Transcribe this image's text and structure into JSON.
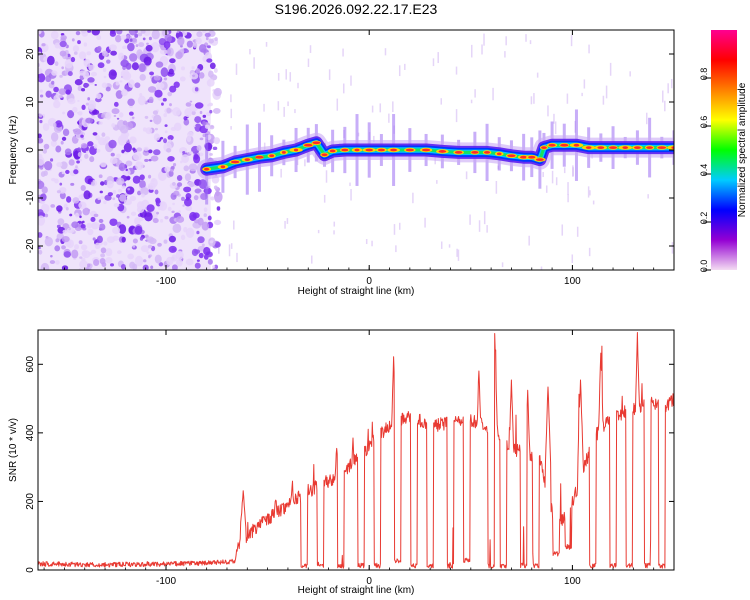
{
  "figure_title": "S196.2026.092.22.17.E23",
  "colors": {
    "line": "#e83a32",
    "track_core": "#ff2a2a",
    "noise": "#7a2cf0",
    "axis": "#000000"
  },
  "chart_data": [
    {
      "type": "heatmap",
      "title": "S196.2026.092.22.17.E23",
      "xlabel": "Height of straight line (km)",
      "ylabel": "Frequency (Hz)",
      "xlim": [
        -163,
        150
      ],
      "ylim": [
        -25,
        25
      ],
      "xticks": [
        -100,
        0,
        100
      ],
      "yticks": [
        -20,
        -10,
        0,
        10,
        20
      ],
      "colorbar": {
        "label": "Normalized spectral amplitude",
        "range": [
          0,
          1
        ],
        "ticks": [
          "0.0",
          "0.2",
          "0.4",
          "0.6",
          "0.8"
        ],
        "tick_values": [
          0,
          0.2,
          0.4,
          0.6,
          0.8
        ],
        "colors": [
          "#f4dcf2",
          "#9400d3",
          "#0000ff",
          "#00ccff",
          "#00ff00",
          "#ffff00",
          "#ff8000",
          "#ff0000",
          "#ff0090"
        ]
      },
      "noise_region_x": [
        -163,
        -78
      ],
      "track": {
        "x": [
          -80,
          -72,
          -66,
          -60,
          -54,
          -48,
          -42,
          -36,
          -30,
          -26,
          -22,
          -18,
          -12,
          -6,
          0,
          6,
          12,
          20,
          28,
          36,
          44,
          52,
          58,
          64,
          70,
          76,
          80,
          84,
          86,
          90,
          96,
          102,
          108,
          114,
          120,
          126,
          132,
          138,
          144,
          150
        ],
        "y": [
          -4,
          -3.5,
          -2.5,
          -2,
          -1.5,
          -1.2,
          -0.5,
          0,
          1,
          1.5,
          -1,
          -0.2,
          0,
          0,
          0,
          0,
          0,
          0,
          0,
          -0.3,
          -0.5,
          -0.5,
          -0.5,
          -0.8,
          -1.2,
          -1.5,
          -1.5,
          -2,
          0.5,
          1,
          1,
          1,
          0.5,
          0.5,
          0.5,
          0.5,
          0.5,
          0.5,
          0.5,
          0.5
        ]
      }
    },
    {
      "type": "line",
      "xlabel": "Height of straight line (km)",
      "ylabel": "SNR (10 * v/v)",
      "xlim": [
        -163,
        150
      ],
      "ylim": [
        0,
        700
      ],
      "xticks": [
        -100,
        0,
        100
      ],
      "yticks": [
        0,
        200,
        400,
        600
      ],
      "series": [
        {
          "name": "SNR",
          "baseline": {
            "x": [
              -163,
              -130,
              -100,
              -80,
              -66,
              -64,
              -60,
              -50,
              -40,
              -30,
              -20,
              -12,
              -6,
              0,
              6,
              12,
              20,
              30,
              40,
              50,
              60,
              70,
              78,
              84,
              90,
              95,
              100,
              105,
              110,
              115,
              120,
              125,
              130,
              135,
              140,
              145,
              150
            ],
            "y": [
              18,
              15,
              18,
              20,
              25,
              80,
              100,
              150,
              190,
              230,
              260,
              290,
              330,
              360,
              400,
              430,
              450,
              420,
              430,
              440,
              410,
              360,
              330,
              320,
              170,
              140,
              200,
              280,
              380,
              420,
              440,
              460,
              470,
              480,
              490,
              470,
              500
            ]
          },
          "spikes": {
            "x": [
              -62,
              -52,
              -46,
              -38,
              -32,
              -24,
              -16,
              -8,
              12,
              22,
              30,
              40,
              48,
              54,
              62,
              70,
              78,
              88,
              92,
              104,
              114,
              120,
              128,
              132,
              144
            ],
            "y": [
              230,
              160,
              210,
              250,
              290,
              310,
              360,
              380,
              620,
              600,
              590,
              580,
              560,
              590,
              640,
              550,
              520,
              540,
              620,
              560,
              640,
              480,
              600,
              690,
              640
            ]
          },
          "dips": {
            "x": [
              -32,
              -24,
              -14,
              -4,
              4,
              14,
              22,
              30,
              40,
              48,
              60,
              66,
              76,
              82,
              92,
              98,
              110,
              120,
              128,
              137,
              144
            ],
            "y": [
              5,
              5,
              5,
              5,
              5,
              20,
              5,
              5,
              5,
              20,
              5,
              5,
              5,
              5,
              40,
              60,
              5,
              5,
              5,
              5,
              5
            ]
          }
        }
      ]
    }
  ]
}
